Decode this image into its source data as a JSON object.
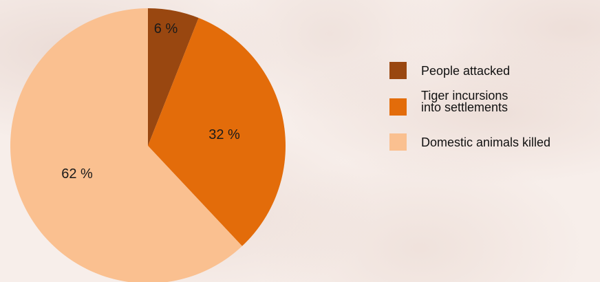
{
  "chart_data": {
    "type": "pie",
    "start_angle_deg": 0,
    "direction": "clockwise",
    "slices": [
      {
        "label": "People attacked",
        "value": 6,
        "value_label": "6 %",
        "color": "#994710"
      },
      {
        "label": "Tiger incursions\ninto settlements",
        "value": 32,
        "value_label": "32 %",
        "color": "#e36c0a"
      },
      {
        "label": "Domestic animals killed",
        "value": 62,
        "value_label": "62 %",
        "color": "#fac090"
      }
    ],
    "legend_position": "right"
  }
}
